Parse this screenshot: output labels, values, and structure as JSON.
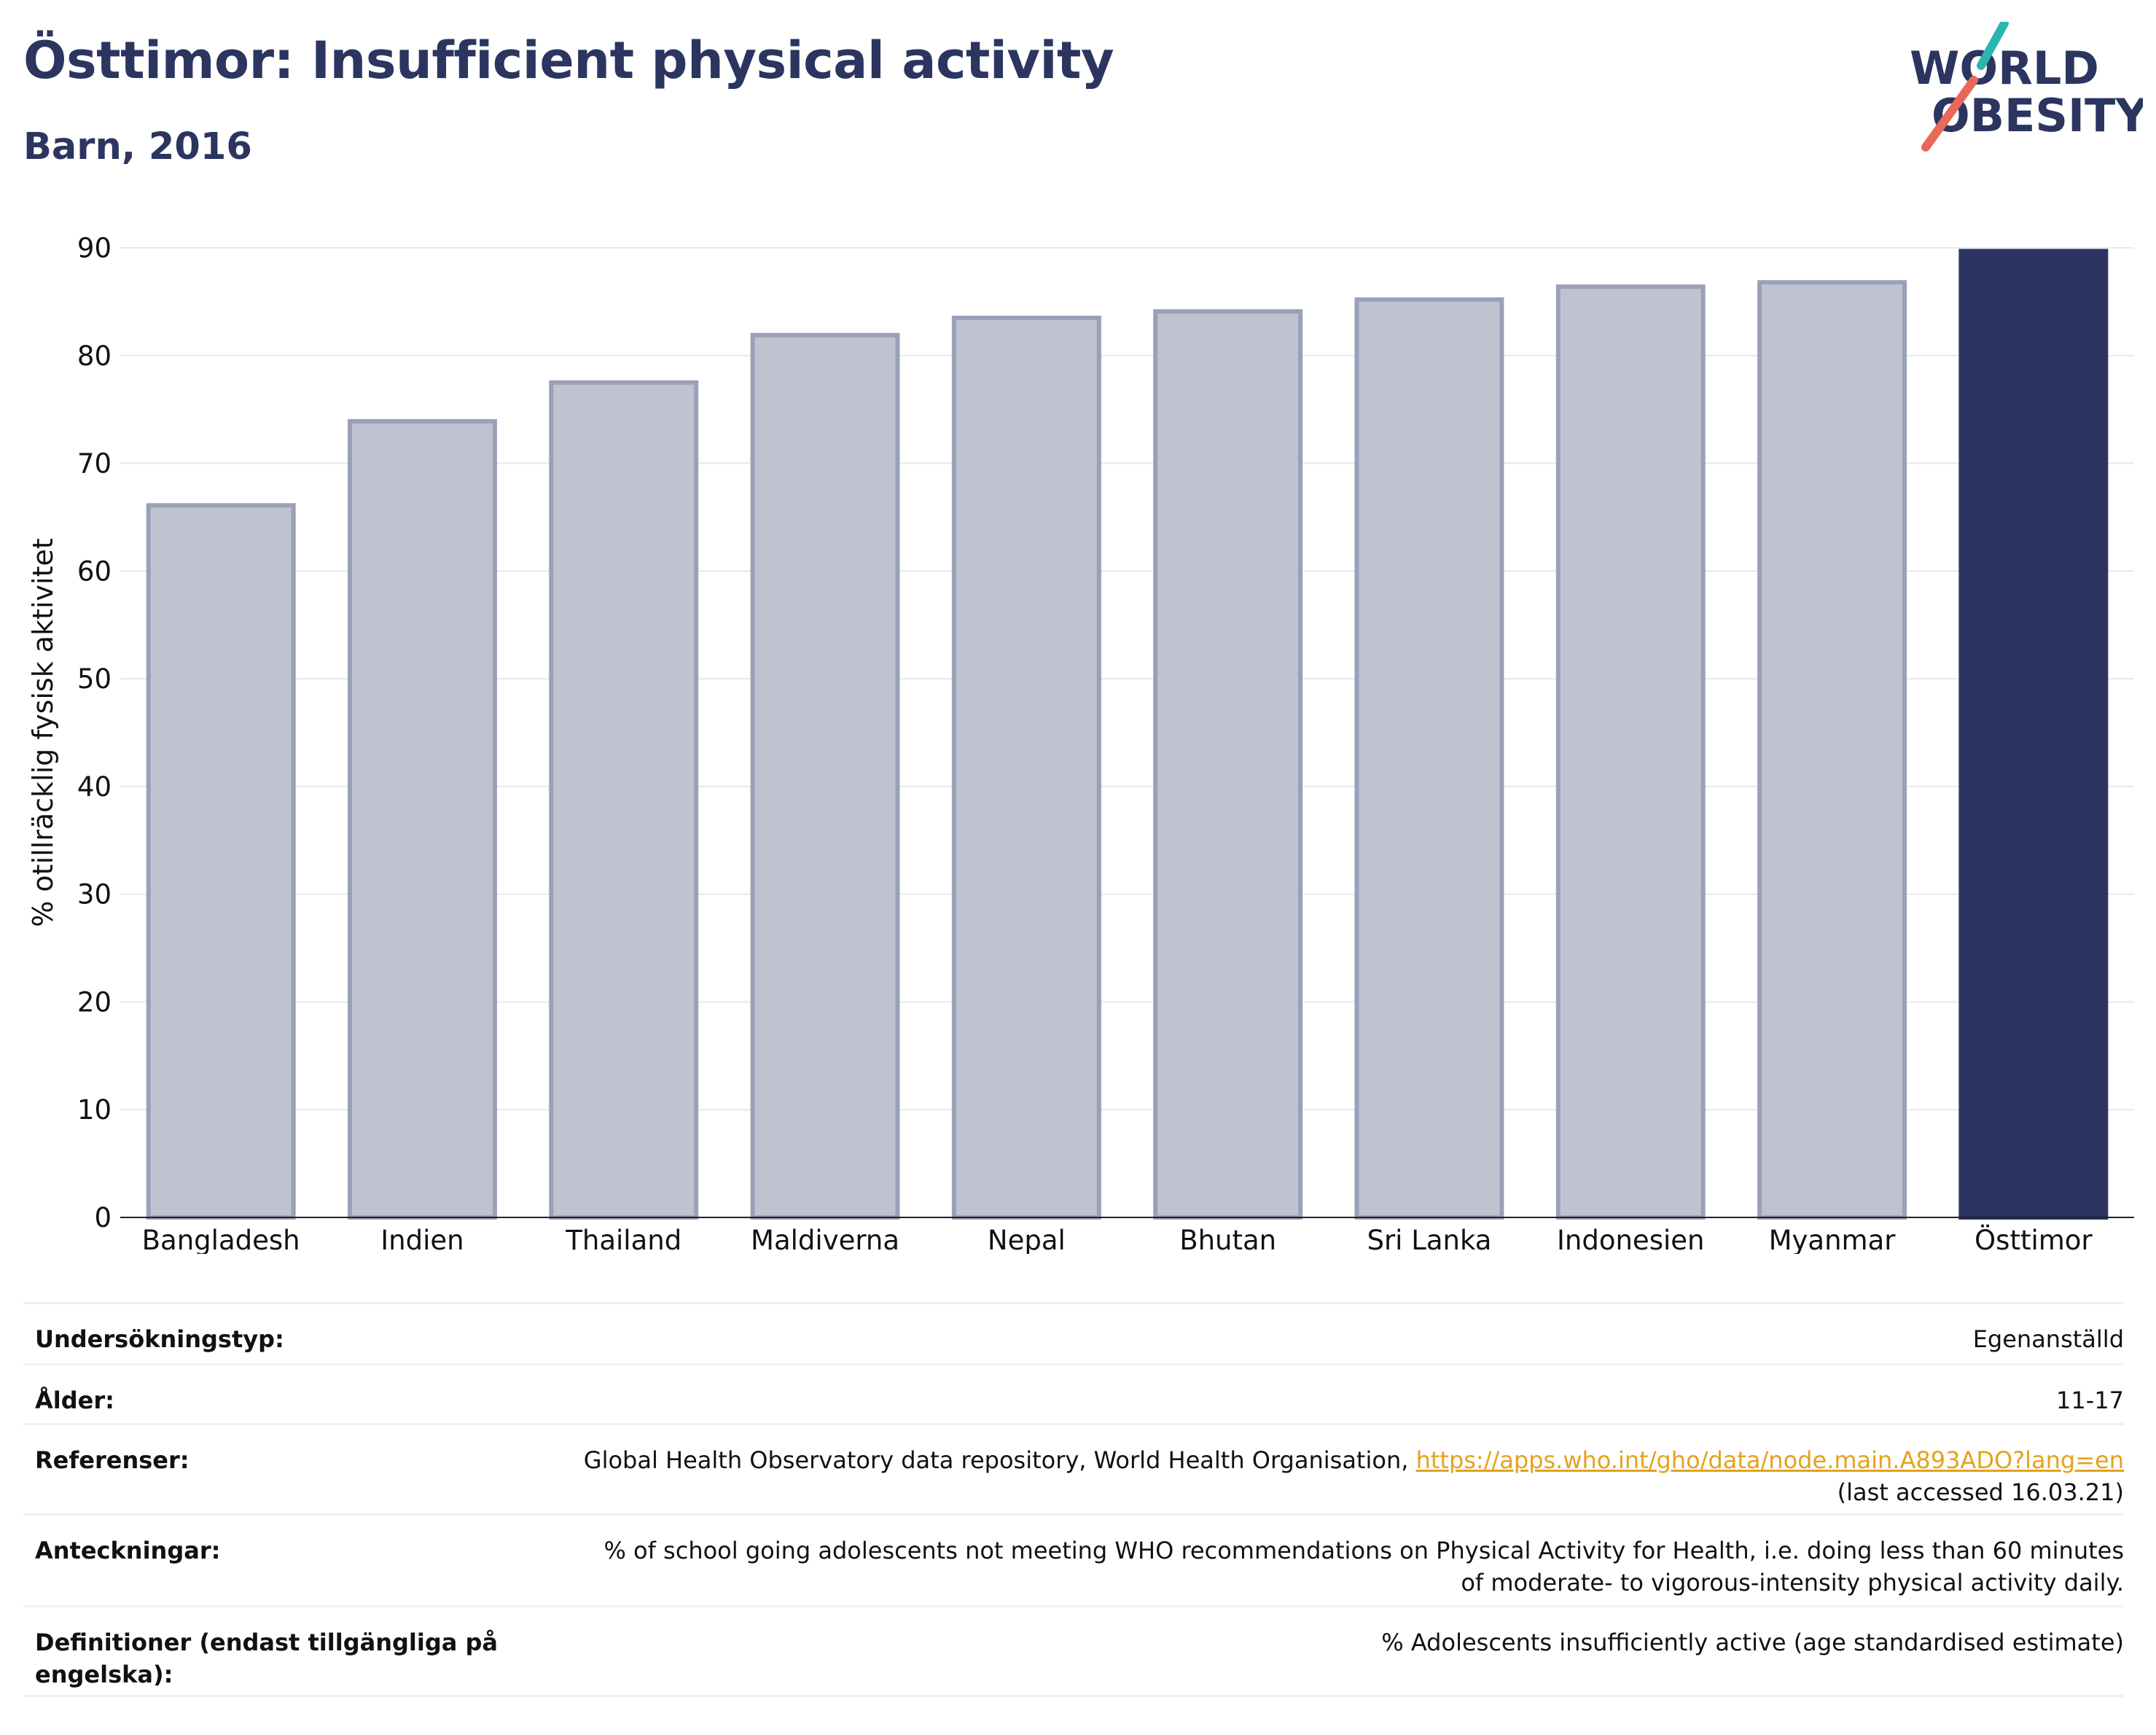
{
  "header": {
    "title": "Östtimor: Insufficient physical activity",
    "subtitle": "Barn, 2016"
  },
  "logo": {
    "line1": "WORLD",
    "line2": "OBESITY",
    "accent_teal": "#2bb5b0",
    "accent_red": "#e8685a",
    "text_color": "#2b3560"
  },
  "chart_data": {
    "type": "bar",
    "categories": [
      "Bangladesh",
      "Indien",
      "Thailand",
      "Maldiverna",
      "Nepal",
      "Bhutan",
      "Sri Lanka",
      "Indonesien",
      "Myanmar",
      "Östtimor"
    ],
    "values": [
      66.1,
      73.9,
      77.5,
      81.9,
      83.5,
      84.1,
      85.2,
      86.4,
      86.8,
      89.7
    ],
    "highlight": "Östtimor",
    "ylabel": "% otillräcklig fysisk aktivitet",
    "ylim": [
      0,
      90
    ],
    "yticks": [
      "0",
      "10",
      "20",
      "30",
      "40",
      "50",
      "60",
      "70",
      "80",
      "90"
    ],
    "grid": true,
    "colors": {
      "bar": "#bfc2cf",
      "bar_border": "#9aa0b7",
      "highlight": "#2b3560"
    }
  },
  "meta": {
    "survey_label": "Undersökningstyp:",
    "survey_value": "Egenanställd",
    "age_label": "Ålder:",
    "age_value": "11-17",
    "ref_label": "Referenser:",
    "ref_text": "Global Health Observatory data repository, World Health Organisation, ",
    "ref_link": "https://apps.who.int/gho/data/node.main.A893ADO?lang=en",
    "ref_accessed": "(last accessed 16.03.21)",
    "notes_label": "Anteckningar:",
    "notes_value": "% of school going adolescents not meeting WHO recommendations on Physical Activity for Health, i.e. doing less than 60 minutes of moderate- to vigorous-intensity physical activity daily.",
    "def_label": "Definitioner (endast tillgängliga på engelska):",
    "def_value": "% Adolescents insufficiently active (age standardised estimate)"
  }
}
